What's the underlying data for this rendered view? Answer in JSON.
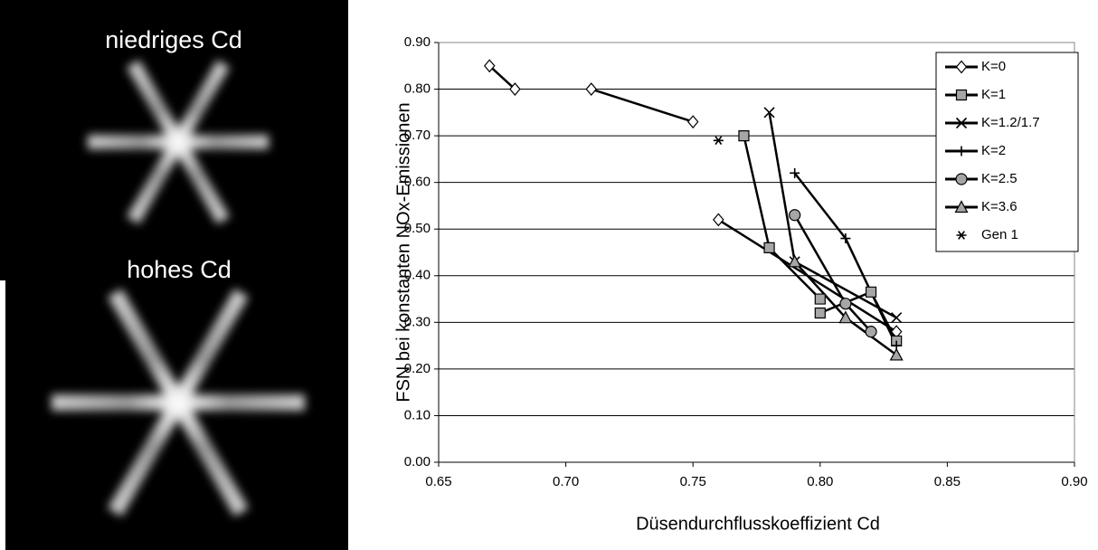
{
  "images": [
    {
      "label": "niedriges Cd"
    },
    {
      "label": "hohes Cd"
    }
  ],
  "chart_data": {
    "type": "line",
    "x_label": "Düsendurchflusskoeffizient Cd",
    "y_label": "FSN bei konstanten NOx-Emissionen",
    "xlim": [
      0.65,
      0.9
    ],
    "xticks": [
      {
        "value": 0.65,
        "label": "0.65"
      },
      {
        "value": 0.7,
        "label": "0.70"
      },
      {
        "value": 0.75,
        "label": "0.75"
      },
      {
        "value": 0.8,
        "label": "0.80"
      },
      {
        "value": 0.85,
        "label": "0.85"
      },
      {
        "value": 0.9,
        "label": "0.90"
      }
    ],
    "ylim": [
      0,
      0.9
    ],
    "yticks": [
      {
        "value": 0,
        "label": "0.00"
      },
      {
        "value": 0.1,
        "label": "0.10"
      },
      {
        "value": 0.2,
        "label": "0.20"
      },
      {
        "value": 0.3,
        "label": "0.30"
      },
      {
        "value": 0.4,
        "label": "0.40"
      },
      {
        "value": 0.5,
        "label": "0.50"
      },
      {
        "value": 0.6,
        "label": "0.60"
      },
      {
        "value": 0.7,
        "label": "0.70"
      },
      {
        "value": 0.8,
        "label": "0.80"
      },
      {
        "value": 0.9,
        "label": "0.90"
      }
    ],
    "grid": true,
    "legend": "upper right",
    "series": [
      {
        "name": "K=0",
        "color": "#000000",
        "marker": "diamond",
        "marker_fill": "#ffffff",
        "line": true,
        "x": [
          0.67,
          0.68,
          null,
          0.71,
          0.75,
          null,
          0.76,
          0.83
        ],
        "values": [
          0.85,
          0.8,
          null,
          0.8,
          0.73,
          null,
          0.52,
          0.28
        ]
      },
      {
        "name": "K=1",
        "color": "#000000",
        "marker": "square",
        "marker_fill": "#a6a6a6",
        "line": true,
        "x": [
          0.77,
          0.78,
          0.8,
          null,
          0.8,
          0.82,
          0.83
        ],
        "values": [
          0.7,
          0.46,
          0.35,
          null,
          0.32,
          0.365,
          0.26
        ]
      },
      {
        "name": "K=1.2/1.7",
        "color": "#000000",
        "marker": "x",
        "marker_fill": "#000000",
        "line": true,
        "x": [
          0.78,
          0.79,
          0.83
        ],
        "values": [
          0.75,
          0.43,
          0.31
        ]
      },
      {
        "name": "K=2",
        "color": "#000000",
        "marker": "plus",
        "marker_fill": "#000000",
        "line": true,
        "x": [
          0.79,
          0.81,
          0.83
        ],
        "values": [
          0.62,
          0.48,
          0.25
        ]
      },
      {
        "name": "K=2.5",
        "color": "#000000",
        "marker": "circle",
        "marker_fill": "#a6a6a6",
        "line": true,
        "x": [
          0.79,
          0.81,
          0.82
        ],
        "values": [
          0.53,
          0.34,
          0.28
        ]
      },
      {
        "name": "K=3.6",
        "color": "#000000",
        "marker": "triangle",
        "marker_fill": "#a6a6a6",
        "line": true,
        "x": [
          0.79,
          0.81,
          0.83
        ],
        "values": [
          0.43,
          0.31,
          0.23
        ]
      },
      {
        "name": "Gen 1",
        "color": "#000000",
        "marker": "asterisk",
        "marker_fill": "#000000",
        "line": false,
        "x": [
          0.76
        ],
        "values": [
          0.69
        ]
      }
    ]
  }
}
